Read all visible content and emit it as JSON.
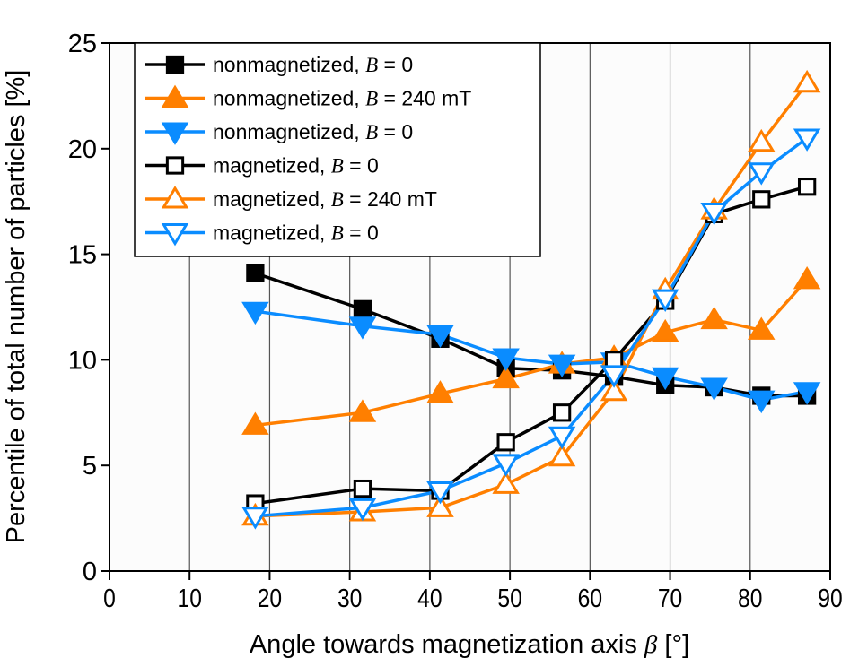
{
  "chart_data": {
    "type": "line",
    "title": "",
    "xlabel": "Angle towards magnetization axis β [°]",
    "xlabel_parts": {
      "text": "Angle towards magnetization axis ",
      "symbol": "β",
      "unit": " [°]"
    },
    "ylabel": "Percentile of total number of particles [%]",
    "xlim": [
      0,
      90
    ],
    "ylim": [
      0,
      25
    ],
    "xticks": [
      0,
      10,
      20,
      30,
      40,
      50,
      60,
      70,
      80,
      90
    ],
    "yticks": [
      0,
      5,
      10,
      15,
      20,
      25
    ],
    "grid": "vertical",
    "legend_position": "top-left",
    "x": [
      18.2,
      31.6,
      41.3,
      49.5,
      56.5,
      63.0,
      69.4,
      75.5,
      81.4,
      87.1
    ],
    "series": [
      {
        "name": "nonmagnetized, B = 0",
        "label_prefix": "nonmagnetized, ",
        "label_symbol": "B",
        "label_suffix": " = 0",
        "color": "#000000",
        "marker": "square",
        "filled": true,
        "values": [
          14.1,
          12.4,
          11.0,
          9.6,
          9.5,
          9.2,
          8.8,
          8.7,
          8.3,
          8.3
        ]
      },
      {
        "name": "nonmagnetized, B = 240 mT",
        "label_prefix": "nonmagnetized, ",
        "label_symbol": "B",
        "label_suffix": " = 240 mT",
        "color": "#ff7f00",
        "marker": "triangle-up",
        "filled": true,
        "values": [
          6.9,
          7.5,
          8.4,
          9.1,
          9.8,
          10.1,
          11.3,
          11.9,
          11.4,
          13.8
        ]
      },
      {
        "name": "nonmagnetized, B = 0",
        "label_prefix": "nonmagnetized, ",
        "label_symbol": "B",
        "label_suffix": " = 0",
        "color": "#0a8cff",
        "marker": "triangle-down",
        "filled": true,
        "values": [
          12.3,
          11.6,
          11.2,
          10.1,
          9.8,
          9.9,
          9.2,
          8.7,
          8.1,
          8.5
        ]
      },
      {
        "name": "magnetized, B = 0",
        "label_prefix": "magnetized, ",
        "label_symbol": "B",
        "label_suffix": " = 0",
        "color": "#000000",
        "marker": "square",
        "filled": false,
        "values": [
          3.2,
          3.9,
          3.8,
          6.1,
          7.5,
          10.0,
          12.8,
          16.9,
          17.6,
          18.2
        ]
      },
      {
        "name": "magnetized, B = 240 mT",
        "label_prefix": "magnetized, ",
        "label_symbol": "B",
        "label_suffix": " = 240 mT",
        "color": "#ff7f00",
        "marker": "triangle-up",
        "filled": false,
        "values": [
          2.6,
          2.8,
          3.0,
          4.1,
          5.4,
          8.5,
          13.3,
          17.1,
          20.3,
          23.1
        ]
      },
      {
        "name": "magnetized, B = 0",
        "label_prefix": "magnetized, ",
        "label_symbol": "B",
        "label_suffix": " = 0",
        "color": "#0a8cff",
        "marker": "triangle-down",
        "filled": false,
        "values": [
          2.6,
          3.0,
          3.8,
          5.1,
          6.4,
          9.3,
          12.9,
          17.0,
          18.9,
          20.5
        ]
      }
    ]
  }
}
